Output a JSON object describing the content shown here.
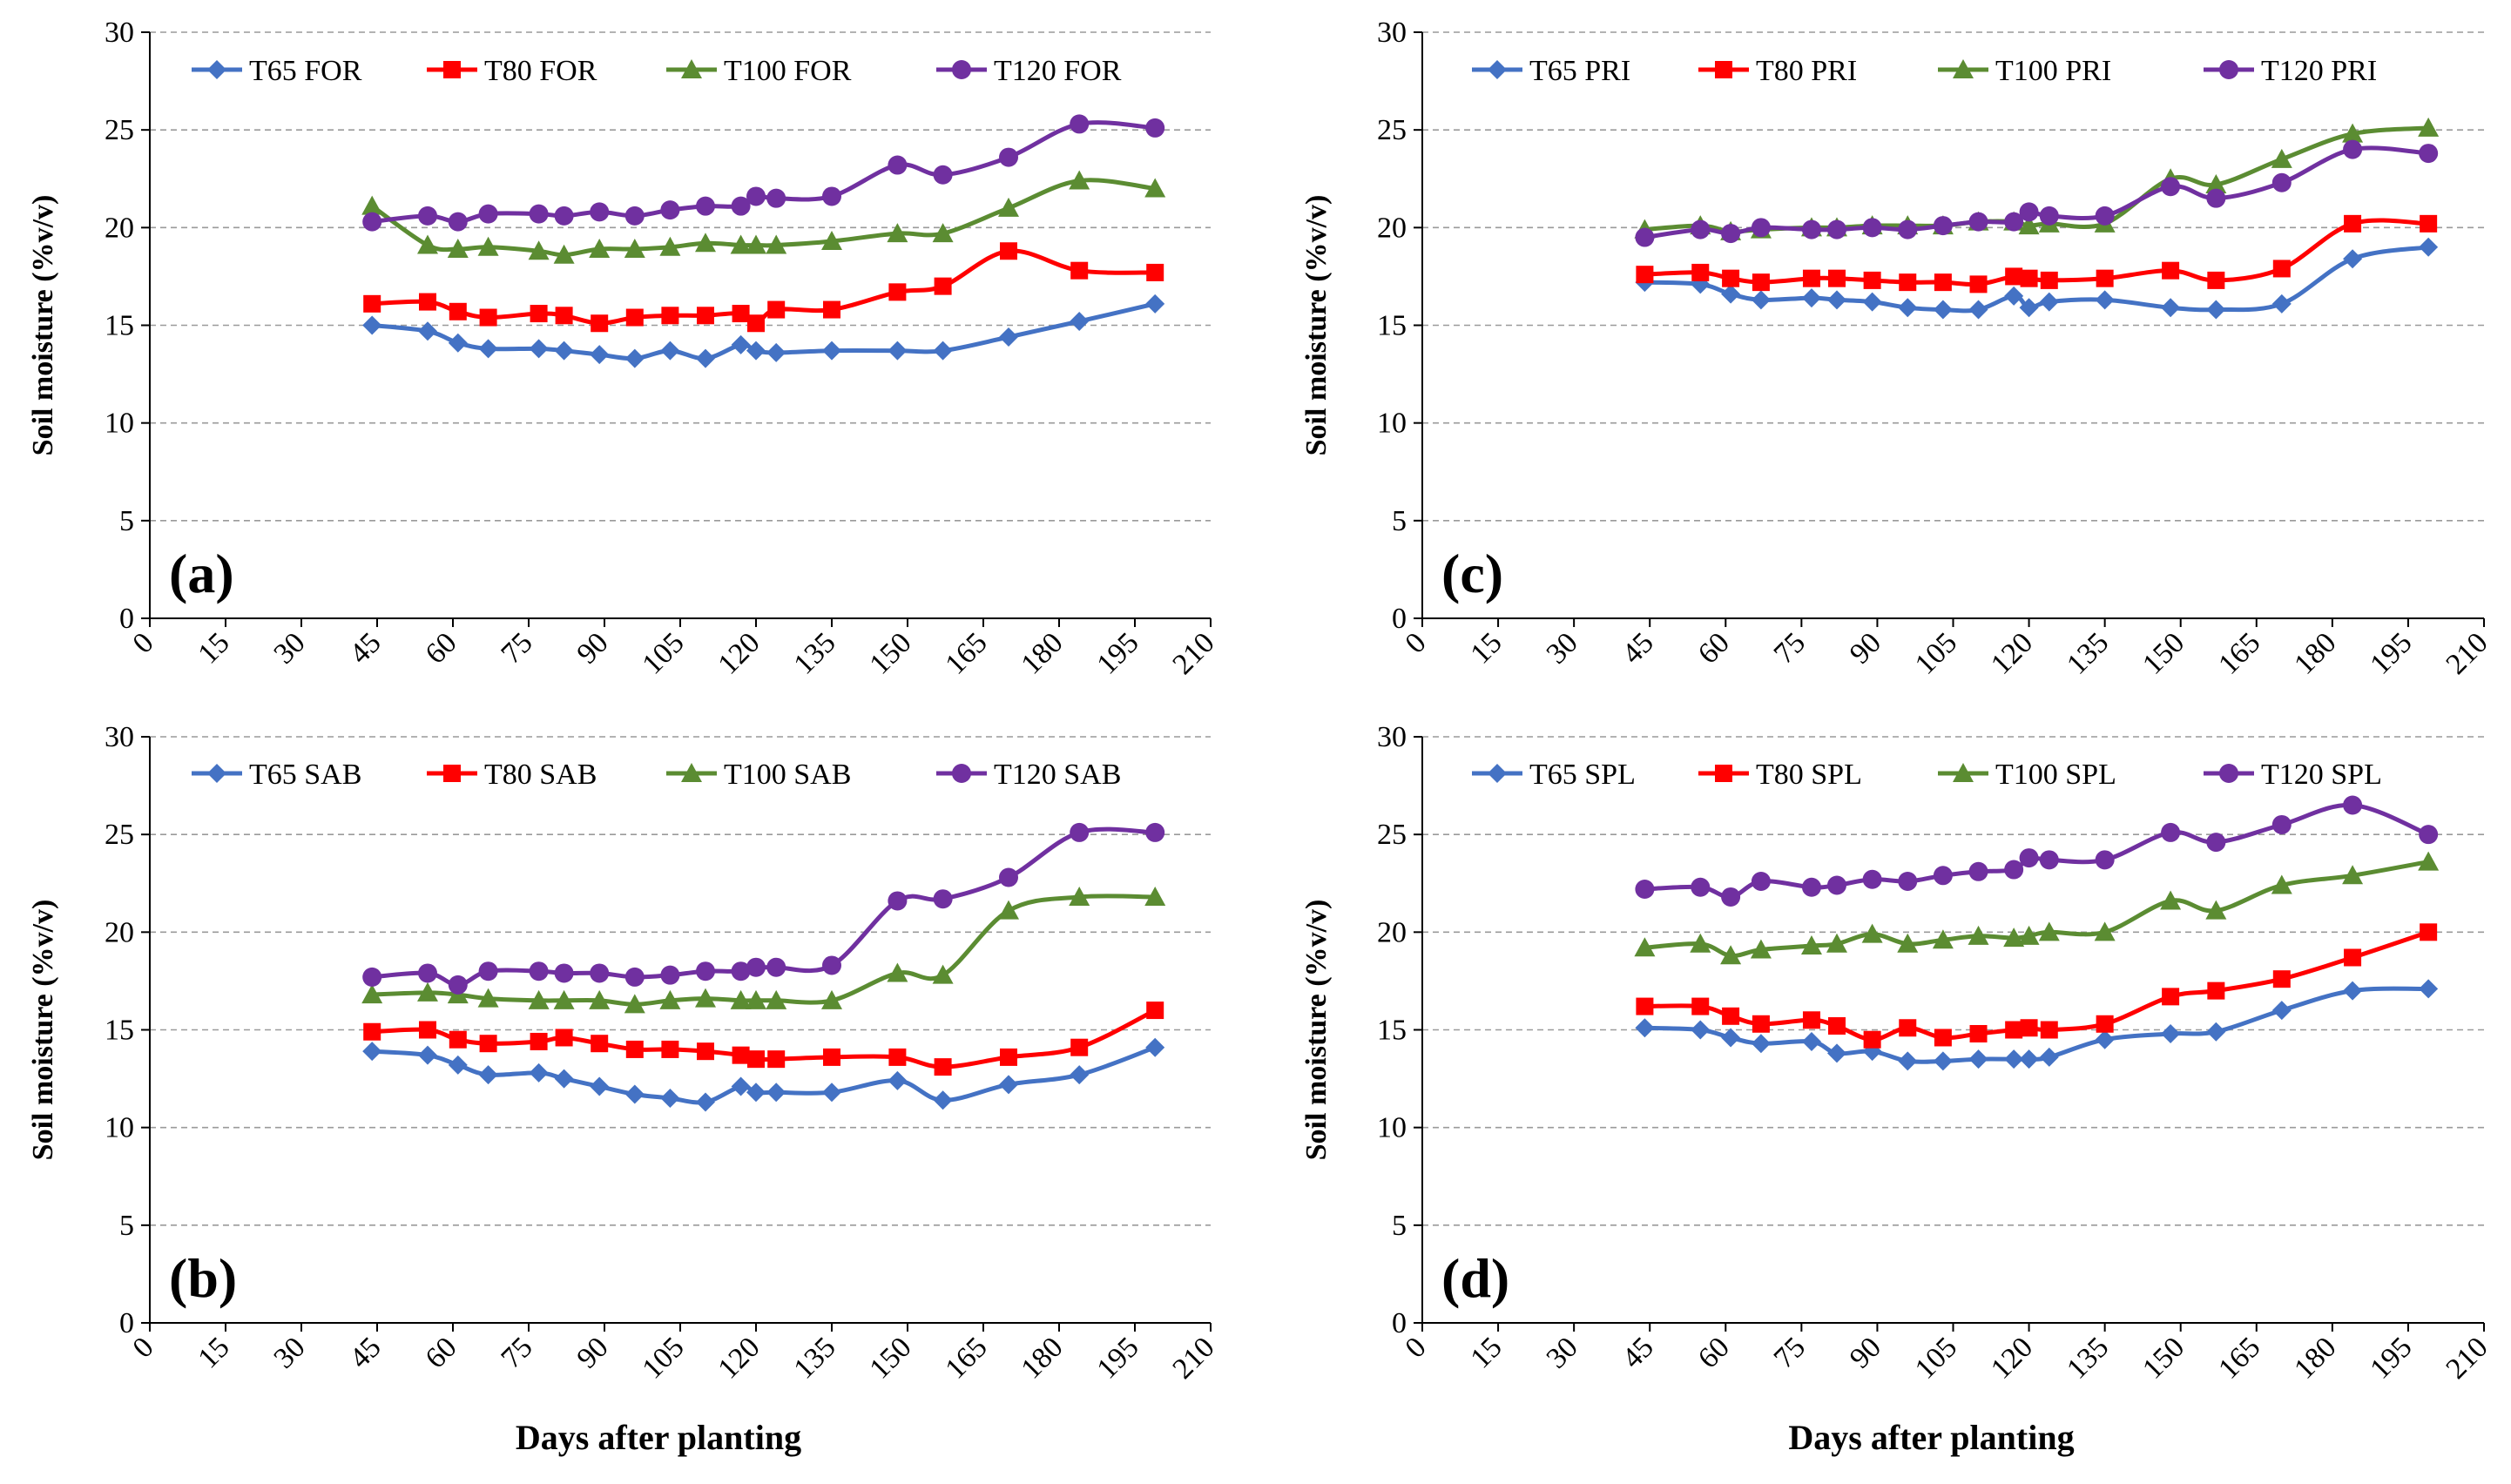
{
  "figure": {
    "xlabel": "Days after planting",
    "ylabel": "Soil moisture (%v/v)"
  },
  "chart_data": [
    {
      "type": "line",
      "panel_label": "(a)",
      "xlabel": "",
      "ylabel": "Soil moisture (%v/v)",
      "xlim": [
        0,
        210
      ],
      "ylim": [
        0,
        30
      ],
      "xticks": [
        "0",
        "15",
        "30",
        "45",
        "60",
        "75",
        "90",
        "105",
        "120",
        "135",
        "150",
        "165",
        "180",
        "195",
        "210"
      ],
      "yticks": [
        "0",
        "5",
        "10",
        "15",
        "20",
        "25",
        "30"
      ],
      "grid": "horizontal dashed",
      "legend": "top",
      "x": [
        44,
        55,
        61,
        67,
        77,
        82,
        89,
        96,
        103,
        110,
        117,
        120,
        124,
        135,
        148,
        157,
        170,
        184,
        199
      ],
      "series": [
        {
          "name": "T65 FOR",
          "marker": "diamond",
          "color": "#4472C4",
          "values": [
            15.0,
            14.7,
            14.1,
            13.8,
            13.8,
            13.7,
            13.5,
            13.3,
            13.7,
            13.3,
            14.0,
            13.7,
            13.6,
            13.7,
            13.7,
            13.7,
            14.4,
            15.2,
            16.1
          ]
        },
        {
          "name": "T80 FOR",
          "marker": "square",
          "color": "#FF0000",
          "values": [
            16.1,
            16.2,
            15.7,
            15.4,
            15.6,
            15.5,
            15.1,
            15.4,
            15.5,
            15.5,
            15.6,
            15.1,
            15.8,
            15.8,
            16.7,
            17.0,
            18.8,
            17.8,
            17.7
          ]
        },
        {
          "name": "T100 FOR",
          "marker": "triangle",
          "color": "#5B8C32",
          "values": [
            21.1,
            19.1,
            18.9,
            19.0,
            18.8,
            18.6,
            18.9,
            18.9,
            19.0,
            19.2,
            19.1,
            19.1,
            19.1,
            19.3,
            19.7,
            19.7,
            21.0,
            22.4,
            22.0
          ]
        },
        {
          "name": "T120 FOR",
          "marker": "circle",
          "color": "#7030A0",
          "values": [
            20.3,
            20.6,
            20.3,
            20.7,
            20.7,
            20.6,
            20.8,
            20.6,
            20.9,
            21.1,
            21.1,
            21.6,
            21.5,
            21.6,
            23.2,
            22.7,
            23.6,
            25.3,
            25.1
          ]
        }
      ]
    },
    {
      "type": "line",
      "panel_label": "(b)",
      "xlabel": "Days after planting",
      "ylabel": "Soil moisture (%v/v)",
      "xlim": [
        0,
        210
      ],
      "ylim": [
        0,
        30
      ],
      "xticks": [
        "0",
        "15",
        "30",
        "45",
        "60",
        "75",
        "90",
        "105",
        "120",
        "135",
        "150",
        "165",
        "180",
        "195",
        "210"
      ],
      "yticks": [
        "0",
        "5",
        "10",
        "15",
        "20",
        "25",
        "30"
      ],
      "grid": "horizontal dashed",
      "legend": "top",
      "x": [
        44,
        55,
        61,
        67,
        77,
        82,
        89,
        96,
        103,
        110,
        117,
        120,
        124,
        135,
        148,
        157,
        170,
        184,
        199
      ],
      "series": [
        {
          "name": "T65 SAB",
          "marker": "diamond",
          "color": "#4472C4",
          "values": [
            13.9,
            13.7,
            13.2,
            12.7,
            12.8,
            12.5,
            12.1,
            11.7,
            11.5,
            11.3,
            12.1,
            11.8,
            11.8,
            11.8,
            12.4,
            11.4,
            12.2,
            12.7,
            14.1
          ]
        },
        {
          "name": "T80 SAB",
          "marker": "square",
          "color": "#FF0000",
          "values": [
            14.9,
            15.0,
            14.5,
            14.3,
            14.4,
            14.6,
            14.3,
            14.0,
            14.0,
            13.9,
            13.7,
            13.5,
            13.5,
            13.6,
            13.6,
            13.1,
            13.6,
            14.1,
            16.0
          ]
        },
        {
          "name": "T100 SAB",
          "marker": "triangle",
          "color": "#5B8C32",
          "values": [
            16.8,
            16.9,
            16.8,
            16.6,
            16.5,
            16.5,
            16.5,
            16.3,
            16.5,
            16.6,
            16.5,
            16.5,
            16.5,
            16.5,
            17.9,
            17.8,
            21.1,
            21.8,
            21.8
          ]
        },
        {
          "name": "T120 SAB",
          "marker": "circle",
          "color": "#7030A0",
          "values": [
            17.7,
            17.9,
            17.3,
            18.0,
            18.0,
            17.9,
            17.9,
            17.7,
            17.8,
            18.0,
            18.0,
            18.2,
            18.2,
            18.3,
            21.6,
            21.7,
            22.8,
            25.1,
            25.1
          ]
        }
      ]
    },
    {
      "type": "line",
      "panel_label": "(c)",
      "xlabel": "",
      "ylabel": "Soil moisture (%v/v)",
      "xlim": [
        0,
        210
      ],
      "ylim": [
        0,
        30
      ],
      "xticks": [
        "0",
        "15",
        "30",
        "45",
        "60",
        "75",
        "90",
        "105",
        "120",
        "135",
        "150",
        "165",
        "180",
        "195",
        "210"
      ],
      "yticks": [
        "0",
        "5",
        "10",
        "15",
        "20",
        "25",
        "30"
      ],
      "grid": "horizontal dashed",
      "legend": "top",
      "x": [
        44,
        55,
        61,
        67,
        77,
        82,
        89,
        96,
        103,
        110,
        117,
        120,
        124,
        135,
        148,
        157,
        170,
        184,
        199
      ],
      "series": [
        {
          "name": "T65 PRI",
          "marker": "diamond",
          "color": "#4472C4",
          "values": [
            17.2,
            17.1,
            16.6,
            16.3,
            16.4,
            16.3,
            16.2,
            15.9,
            15.8,
            15.8,
            16.5,
            15.9,
            16.2,
            16.3,
            15.9,
            15.8,
            16.1,
            18.4,
            19.0
          ]
        },
        {
          "name": "T80 PRI",
          "marker": "square",
          "color": "#FF0000",
          "values": [
            17.6,
            17.7,
            17.4,
            17.2,
            17.4,
            17.4,
            17.3,
            17.2,
            17.2,
            17.1,
            17.5,
            17.4,
            17.3,
            17.4,
            17.8,
            17.3,
            17.9,
            20.2,
            20.2
          ]
        },
        {
          "name": "T100 PRI",
          "marker": "triangle",
          "color": "#5B8C32",
          "values": [
            19.9,
            20.1,
            19.8,
            19.9,
            20.0,
            20.0,
            20.1,
            20.1,
            20.1,
            20.3,
            20.3,
            20.1,
            20.2,
            20.2,
            22.5,
            22.2,
            23.5,
            24.8,
            25.1
          ]
        },
        {
          "name": "T120 PRI",
          "marker": "circle",
          "color": "#7030A0",
          "values": [
            19.5,
            19.9,
            19.7,
            20.0,
            19.9,
            19.9,
            20.0,
            19.9,
            20.1,
            20.3,
            20.3,
            20.8,
            20.6,
            20.6,
            22.1,
            21.5,
            22.3,
            24.0,
            23.8
          ]
        }
      ]
    },
    {
      "type": "line",
      "panel_label": "(d)",
      "xlabel": "Days after planting",
      "ylabel": "Soil moisture (%v/v)",
      "xlim": [
        0,
        210
      ],
      "ylim": [
        0,
        30
      ],
      "xticks": [
        "0",
        "15",
        "30",
        "45",
        "60",
        "75",
        "90",
        "105",
        "120",
        "135",
        "150",
        "165",
        "180",
        "195",
        "210"
      ],
      "yticks": [
        "0",
        "5",
        "10",
        "15",
        "20",
        "25",
        "30"
      ],
      "grid": "horizontal dashed",
      "legend": "top",
      "x": [
        44,
        55,
        61,
        67,
        77,
        82,
        89,
        96,
        103,
        110,
        117,
        120,
        124,
        135,
        148,
        157,
        170,
        184,
        199
      ],
      "series": [
        {
          "name": "T65 SPL",
          "marker": "diamond",
          "color": "#4472C4",
          "values": [
            15.1,
            15.0,
            14.6,
            14.3,
            14.4,
            13.8,
            13.9,
            13.4,
            13.4,
            13.5,
            13.5,
            13.5,
            13.6,
            14.5,
            14.8,
            14.9,
            16.0,
            17.0,
            17.1
          ]
        },
        {
          "name": "T80 SPL",
          "marker": "square",
          "color": "#FF0000",
          "values": [
            16.2,
            16.2,
            15.7,
            15.3,
            15.5,
            15.2,
            14.5,
            15.1,
            14.6,
            14.8,
            15.0,
            15.1,
            15.0,
            15.3,
            16.7,
            17.0,
            17.6,
            18.7,
            20.0
          ]
        },
        {
          "name": "T100 SPL",
          "marker": "triangle",
          "color": "#5B8C32",
          "values": [
            19.2,
            19.4,
            18.8,
            19.1,
            19.3,
            19.4,
            19.9,
            19.4,
            19.6,
            19.8,
            19.7,
            19.8,
            20.0,
            20.0,
            21.6,
            21.1,
            22.4,
            22.9,
            23.6
          ]
        },
        {
          "name": "T120 SPL",
          "marker": "circle",
          "color": "#7030A0",
          "values": [
            22.2,
            22.3,
            21.8,
            22.6,
            22.3,
            22.4,
            22.7,
            22.6,
            22.9,
            23.1,
            23.2,
            23.8,
            23.7,
            23.7,
            25.1,
            24.6,
            25.5,
            26.5,
            25.0
          ]
        }
      ]
    }
  ]
}
